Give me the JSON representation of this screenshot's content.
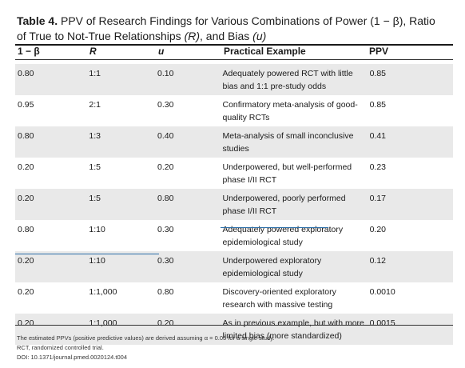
{
  "title": {
    "label": "Table 4.",
    "text_line1": " PPV of Research Findings for Various Combinations of Power (1 − β), Ratio",
    "text_line2_pre": "of True to Not-True Relationships ",
    "text_line2_r": "(R)",
    "text_line2_mid": ", and Bias ",
    "text_line2_u": "(u)"
  },
  "columns": {
    "power": "1 − β",
    "ratio": "R",
    "bias": "u",
    "example": "Practical Example",
    "ppv": "PPV"
  },
  "rows": [
    {
      "power": "0.80",
      "ratio": "1:1",
      "bias": "0.10",
      "example": "Adequately powered RCT with little bias and 1:1 pre-study odds",
      "ppv": "0.85"
    },
    {
      "power": "0.95",
      "ratio": "2:1",
      "bias": "0.30",
      "example": "Confirmatory meta-analysis of good-quality RCTs",
      "ppv": "0.85"
    },
    {
      "power": "0.80",
      "ratio": "1:3",
      "bias": "0.40",
      "example": "Meta-analysis of small inconclusive studies",
      "ppv": "0.41"
    },
    {
      "power": "0.20",
      "ratio": "1:5",
      "bias": "0.20",
      "example": "Underpowered, but well-performed phase I/II  RCT",
      "ppv": "0.23"
    },
    {
      "power": "0.20",
      "ratio": "1:5",
      "bias": "0.80",
      "example": "Underpowered, poorly performed phase I/II RCT",
      "ppv": "0.17"
    },
    {
      "power": "0.80",
      "ratio": "1:10",
      "bias": "0.30",
      "example": "Adequately powered exploratory epidemiological study",
      "ppv": "0.20"
    },
    {
      "power": "0.20",
      "ratio": "1:10",
      "bias": "0.30",
      "example": "Underpowered exploratory epidemiological study",
      "ppv": "0.12"
    },
    {
      "power": "0.20",
      "ratio": "1:1,000",
      "bias": "0.80",
      "example": "Discovery-oriented exploratory research with massive testing",
      "ppv": "0.0010"
    },
    {
      "power": "0.20",
      "ratio": "1:1,000",
      "bias": "0.20",
      "example": "As in previous example, but with more limited bias (more standardized)",
      "ppv": "0.0015"
    }
  ],
  "footnotes": {
    "ppv_note": "The estimated PPVs (positive predictive values) are derived assuming α = 0.05 for a single study.",
    "rct_note": "RCT, randomized controlled trial.",
    "doi": "DOI: 10.1371/journal.pmed.0020124.t004"
  },
  "colors": {
    "row_shade": "#e9e9e9",
    "annotation_line": "#2c6fa8"
  }
}
